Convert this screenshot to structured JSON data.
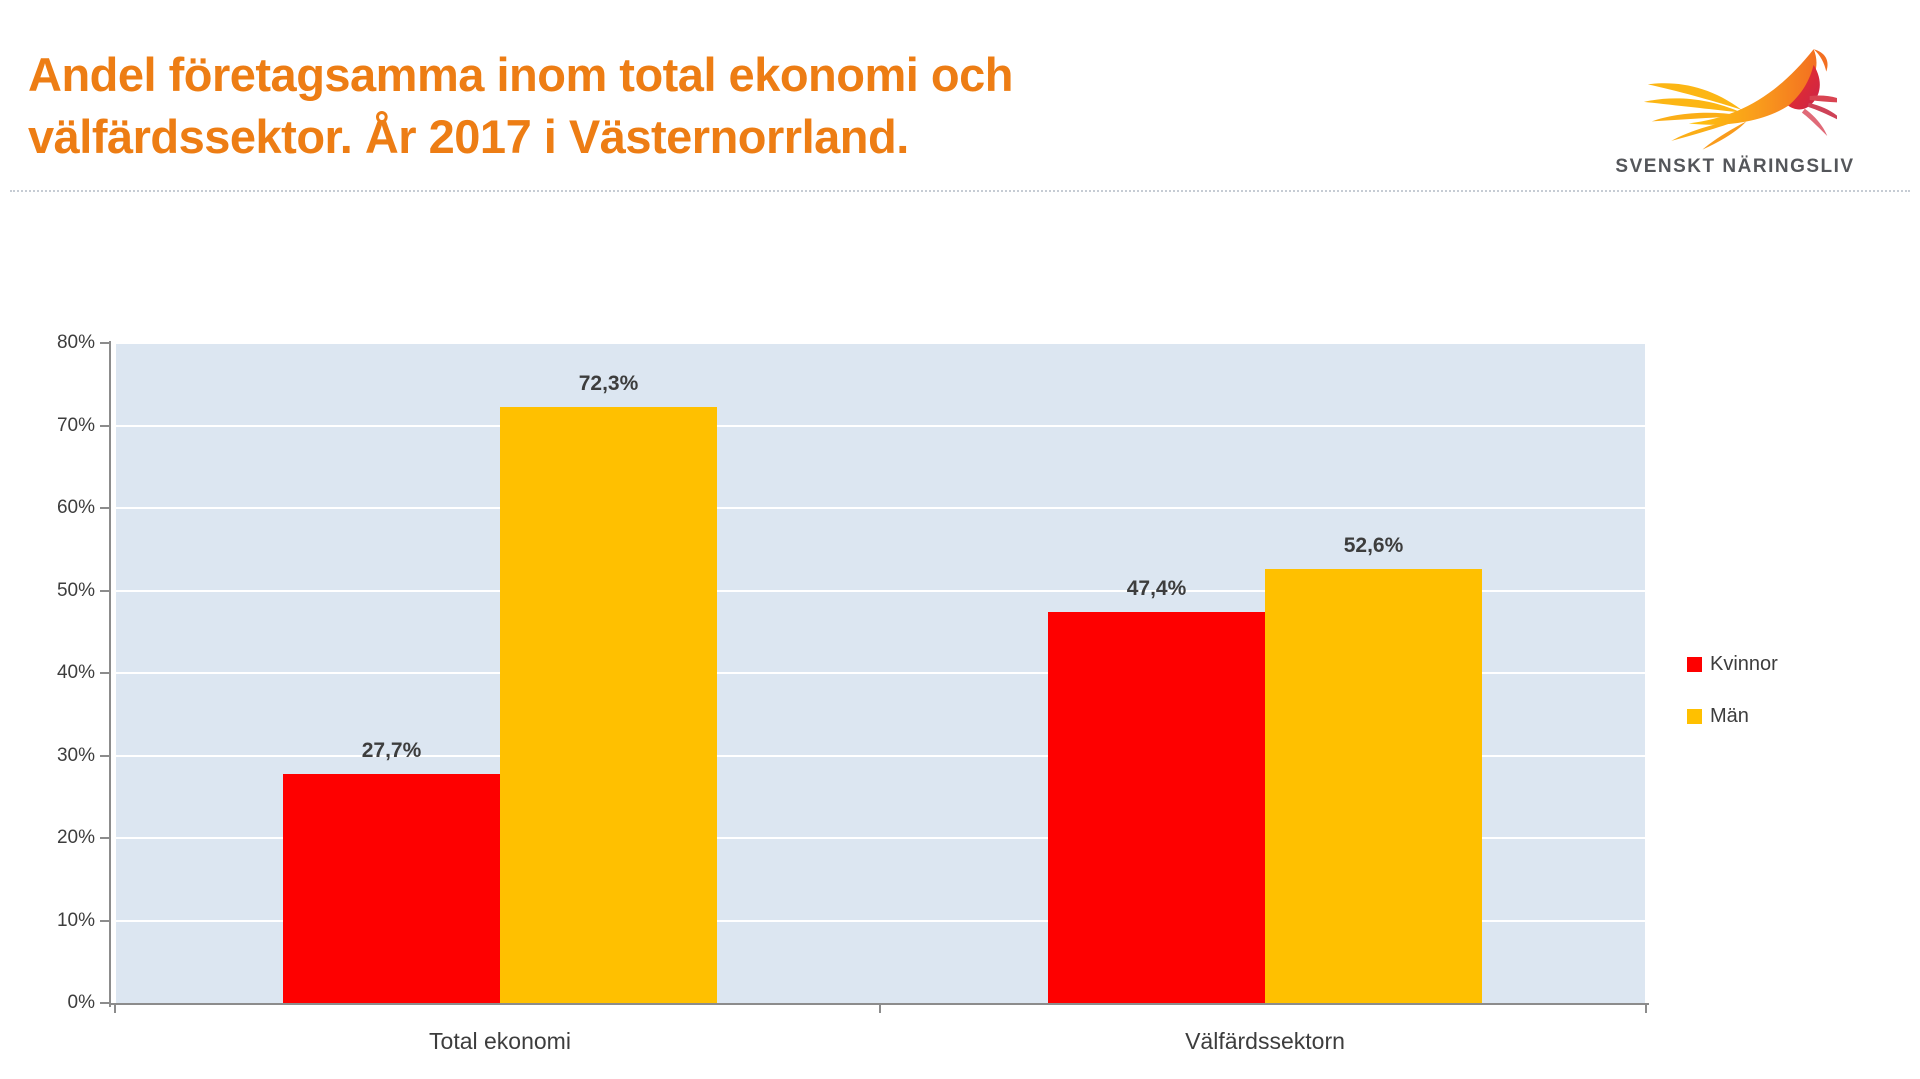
{
  "header": {
    "title_line1": "Andel företagsamma inom total ekonomi och",
    "title_line2": "välfärdssektor. År 2017 i Västernorrland.",
    "title_color": "#ed7d14",
    "logo_text": "SVENSKT NÄRINGSLIV"
  },
  "chart_data": {
    "type": "bar",
    "categories": [
      "Total ekonomi",
      "Välfärdssektorn"
    ],
    "series": [
      {
        "name": "Kvinnor",
        "color": "#fe0000",
        "values": [
          27.7,
          47.4
        ],
        "labels": [
          "27,7%",
          "47,4%"
        ]
      },
      {
        "name": "Män",
        "color": "#ffc000",
        "values": [
          72.3,
          52.6
        ],
        "labels": [
          "72,3%",
          "52,6%"
        ]
      }
    ],
    "ylim": [
      0,
      80
    ],
    "ytick_step": 10,
    "ytick_labels": [
      "0%",
      "10%",
      "20%",
      "30%",
      "40%",
      "50%",
      "60%",
      "70%",
      "80%"
    ],
    "grid": true,
    "legend_position": "right",
    "plot_bg_color": "#dce6f1",
    "gridline_color": "#ffffff",
    "axis_color": "#8c8c8c",
    "text_color": "#3d3d3d"
  }
}
